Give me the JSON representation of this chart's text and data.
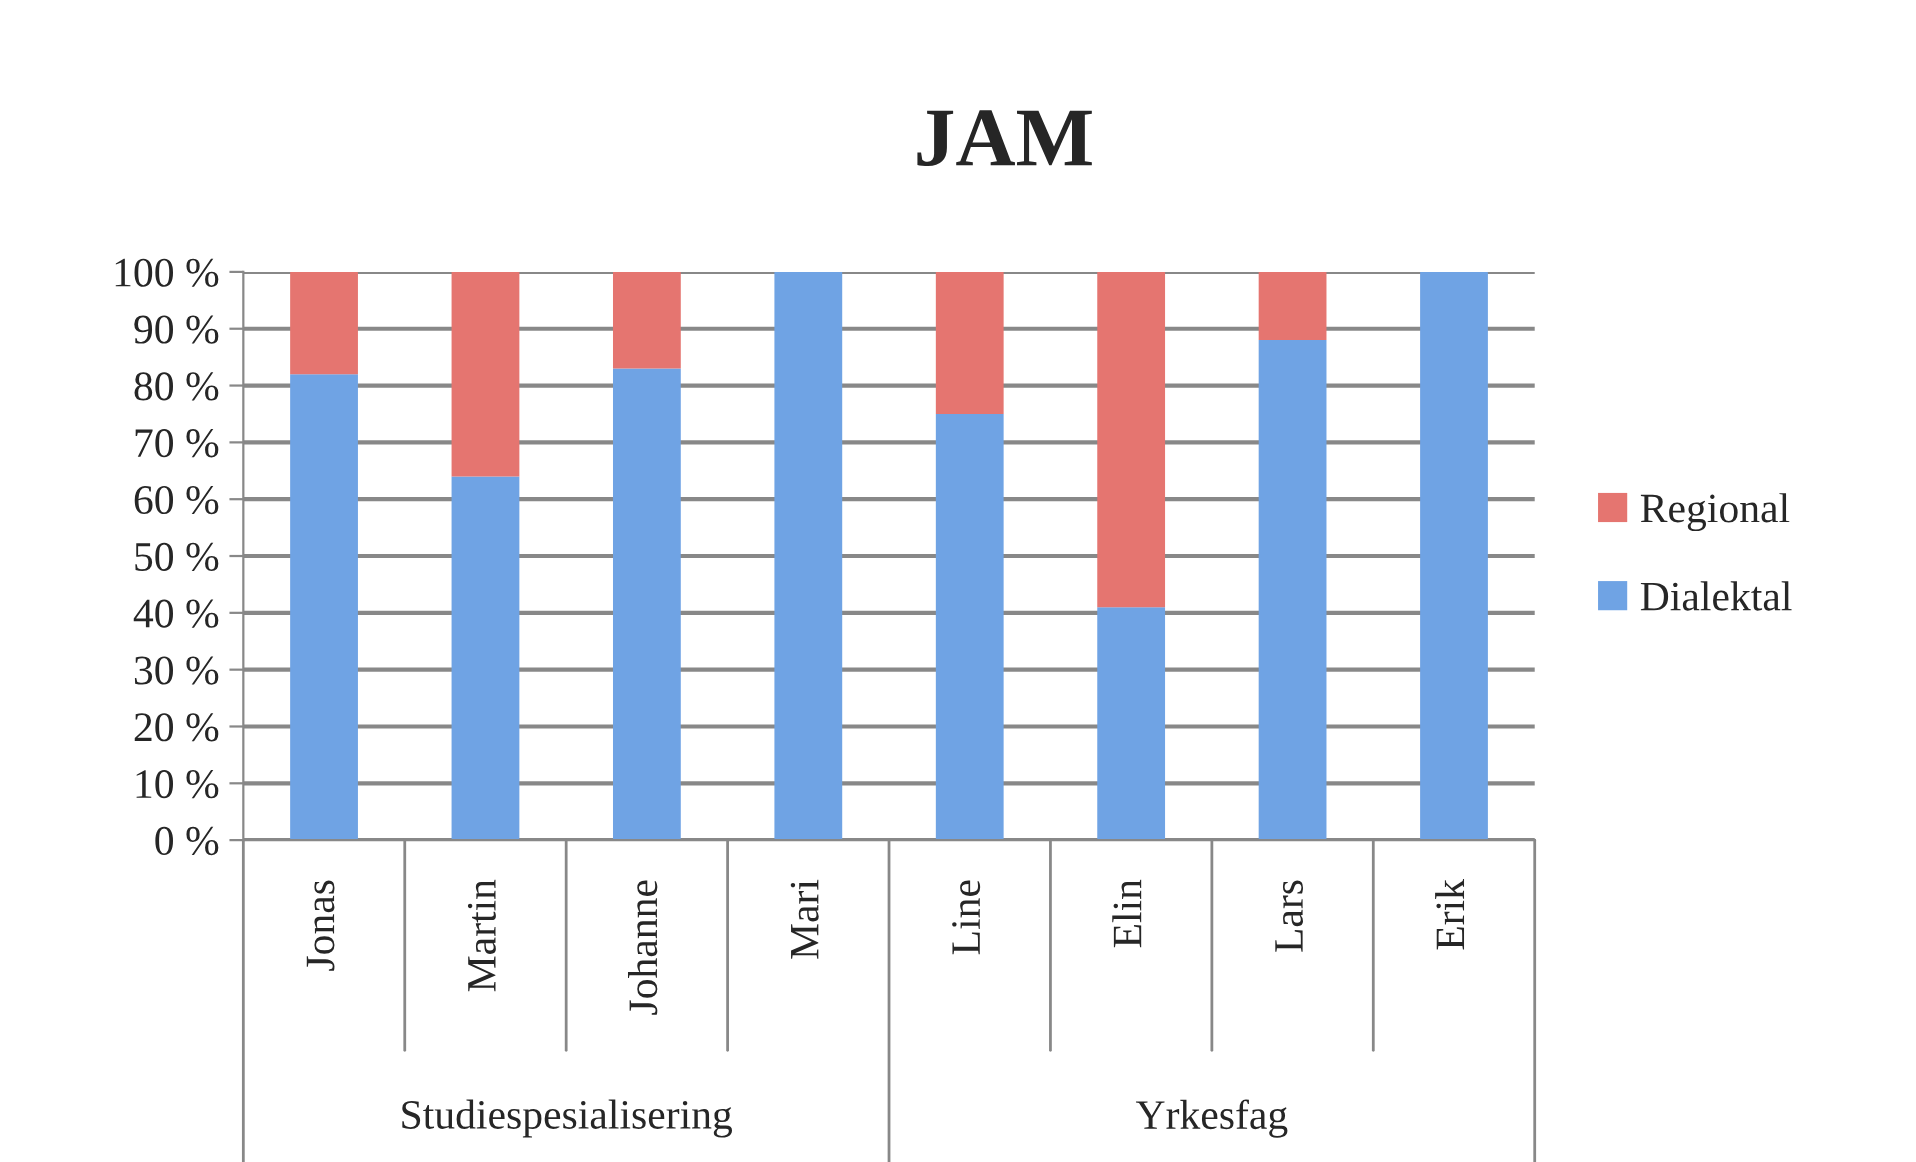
{
  "chart_data": {
    "type": "bar",
    "title": "JAM",
    "stacked": true,
    "categories": [
      "Jonas",
      "Martin",
      "Johanne",
      "Mari",
      "Line",
      "Elin",
      "Lars",
      "Erik"
    ],
    "series": [
      {
        "name": "Dialektal",
        "color": "#6fa3e4",
        "values": [
          82,
          64,
          83,
          100,
          75,
          41,
          88,
          100
        ]
      },
      {
        "name": "Regional",
        "color": "#e57570",
        "values": [
          18,
          36,
          17,
          0,
          25,
          59,
          12,
          0
        ]
      }
    ],
    "ylim": [
      0,
      100
    ],
    "yticks": [
      {
        "value": 0,
        "label": "0 %"
      },
      {
        "value": 10,
        "label": "10 %"
      },
      {
        "value": 20,
        "label": "20 %"
      },
      {
        "value": 30,
        "label": "30 %"
      },
      {
        "value": 40,
        "label": "40 %"
      },
      {
        "value": 50,
        "label": "50 %"
      },
      {
        "value": 60,
        "label": "60 %"
      },
      {
        "value": 70,
        "label": "70 %"
      },
      {
        "value": 80,
        "label": "80 %"
      },
      {
        "value": 90,
        "label": "90 %"
      },
      {
        "value": 100,
        "label": "100 %"
      }
    ],
    "grid": "y",
    "legend": "right",
    "annotations": [
      "Studiespesialisering",
      "Yrkesfag"
    ]
  }
}
